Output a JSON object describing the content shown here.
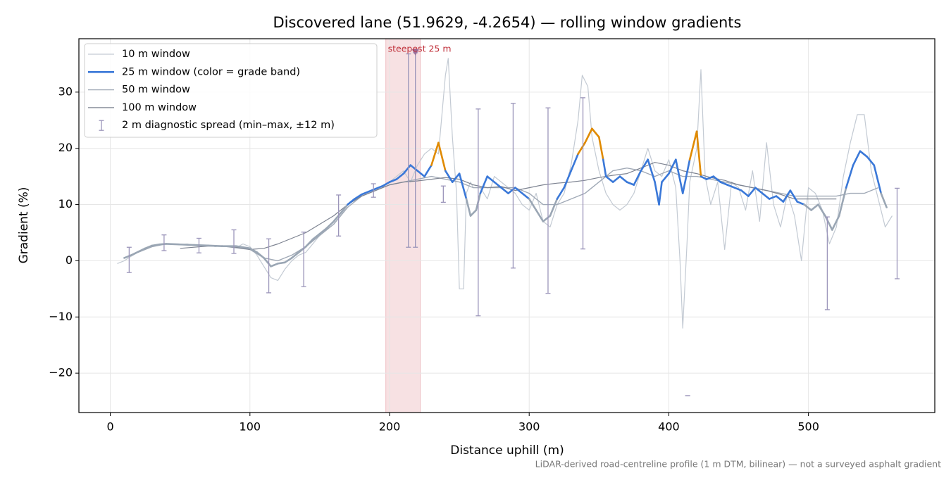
{
  "chart_data": {
    "type": "line",
    "title": "Discovered lane (51.9629, -4.2654) — rolling window gradients",
    "x_label": "Distance uphill (m)",
    "y_label": "Gradient (%)",
    "footnote": "LiDAR-derived road-centreline profile (1 m DTM, bilinear) — not a surveyed asphalt gradient",
    "xlim": [
      -22.5,
      590.5
    ],
    "ylim": [
      -27,
      39.5
    ],
    "xticks": [
      0,
      100,
      200,
      300,
      400,
      500
    ],
    "yticks": [
      {
        "value": -20,
        "label": "−20"
      },
      {
        "value": -10,
        "label": "−10"
      },
      0,
      10,
      20,
      30
    ],
    "grid": true,
    "legend": "upper left",
    "series": [
      {
        "name": "10 m window",
        "color": "#c3cad3",
        "width": 1.2,
        "x": [
          5,
          10,
          15,
          20,
          25,
          30,
          35,
          40,
          45,
          50,
          55,
          60,
          65,
          70,
          75,
          80,
          85,
          90,
          95,
          100,
          105,
          110,
          115,
          120,
          125,
          130,
          135,
          140,
          145,
          150,
          155,
          160,
          165,
          170,
          175,
          180,
          185,
          190,
          195,
          200,
          205,
          210,
          215,
          220,
          225,
          230,
          235,
          240,
          242,
          245,
          248,
          250,
          253,
          255,
          258,
          260,
          265,
          270,
          275,
          280,
          285,
          290,
          295,
          300,
          305,
          310,
          315,
          320,
          325,
          330,
          335,
          338,
          342,
          345,
          350,
          355,
          360,
          365,
          370,
          375,
          380,
          385,
          390,
          395,
          400,
          405,
          408,
          410,
          413,
          415,
          420,
          423,
          426,
          430,
          435,
          440,
          445,
          450,
          455,
          460,
          465,
          470,
          475,
          480,
          485,
          490,
          495,
          500,
          505,
          510,
          515,
          520,
          525,
          530,
          535,
          540,
          543,
          545,
          550,
          555,
          560
        ],
        "values": [
          -0.5,
          0,
          0.8,
          1.5,
          2,
          2.5,
          3,
          3,
          3,
          2.8,
          3,
          2.7,
          2.6,
          2.8,
          2.5,
          2.7,
          2.5,
          2.3,
          3,
          2.5,
          1,
          -1,
          -3,
          -3.5,
          -1.5,
          0,
          1,
          1.5,
          3,
          4.5,
          5.5,
          6.5,
          8,
          10,
          11,
          11.5,
          12,
          12.5,
          13,
          14,
          15,
          16,
          14,
          17,
          19,
          20,
          19,
          33,
          36,
          22,
          12,
          -5,
          -5,
          12,
          14,
          13,
          13,
          11,
          15,
          14,
          13,
          12,
          10,
          9,
          12,
          7,
          6,
          10,
          12,
          17,
          25,
          33,
          31,
          22,
          16,
          12,
          10,
          9,
          10,
          12,
          16,
          20,
          16,
          15,
          18,
          13,
          0,
          -12,
          3,
          14,
          20,
          34,
          15,
          10,
          14,
          2,
          14,
          13,
          9,
          16,
          7,
          21,
          10,
          6,
          12,
          8,
          0,
          13,
          12,
          9,
          3,
          6,
          15,
          21,
          26,
          26,
          20,
          16,
          11,
          6,
          8
        ]
      },
      {
        "name": "25 m window (color = grade band)",
        "color": "#3a78d8",
        "width": 2.6,
        "x": [
          10,
          15,
          20,
          25,
          30,
          35,
          40,
          50,
          60,
          70,
          80,
          90,
          100,
          105,
          110,
          115,
          120,
          125,
          130,
          135,
          140,
          145,
          150,
          155,
          160,
          165,
          170,
          175,
          180,
          185,
          190,
          195,
          200,
          205,
          210,
          215,
          220,
          225,
          230,
          235,
          240,
          245,
          250,
          255,
          258,
          262,
          265,
          270,
          275,
          280,
          285,
          290,
          295,
          300,
          305,
          310,
          315,
          320,
          325,
          330,
          335,
          340,
          345,
          350,
          353,
          355,
          360,
          365,
          370,
          375,
          380,
          385,
          390,
          393,
          395,
          400,
          405,
          410,
          415,
          420,
          423,
          427,
          432,
          437,
          442,
          447,
          452,
          457,
          462,
          467,
          472,
          477,
          482,
          487,
          492,
          497,
          502,
          507,
          512,
          517,
          522,
          527,
          532,
          537,
          542,
          547,
          552,
          556
        ],
        "values": [
          0.5,
          1,
          1.6,
          2.2,
          2.7,
          2.9,
          3,
          2.9,
          2.8,
          2.7,
          2.6,
          2.6,
          2.2,
          1.5,
          0.5,
          -1,
          -0.5,
          -0.3,
          0.5,
          1.5,
          2.5,
          3.8,
          4.8,
          5.8,
          7,
          8.5,
          10,
          11,
          11.8,
          12.3,
          12.8,
          13.3,
          14,
          14.5,
          15.5,
          17,
          16,
          15,
          17,
          21,
          16,
          14,
          15.5,
          11,
          8,
          9,
          12,
          15,
          14,
          13,
          12,
          13,
          12,
          11,
          9,
          7,
          8,
          11,
          13,
          16,
          19,
          21,
          23.5,
          22,
          18,
          15,
          14,
          15,
          14,
          13.5,
          16,
          18,
          14,
          10,
          14,
          15.5,
          18,
          12,
          18,
          23,
          15,
          14.5,
          15,
          14,
          13.5,
          13,
          12.5,
          11.5,
          13,
          12,
          11,
          11.5,
          10.5,
          12.5,
          10.5,
          10,
          9,
          10,
          8,
          5.5,
          8,
          13,
          17,
          19.5,
          18.5,
          17,
          12,
          9.5
        ]
      },
      {
        "name": "50 m window",
        "color": "#a0a9b6",
        "width": 1.4,
        "x": [
          20,
          30,
          40,
          60,
          80,
          100,
          110,
          120,
          130,
          140,
          150,
          160,
          170,
          180,
          190,
          200,
          210,
          220,
          230,
          240,
          250,
          260,
          270,
          280,
          290,
          300,
          310,
          320,
          330,
          340,
          350,
          360,
          370,
          380,
          390,
          400,
          410,
          420,
          430,
          440,
          450,
          460,
          470,
          480,
          490,
          500,
          510,
          520,
          530,
          540,
          550
        ],
        "values": [
          1.5,
          2.5,
          3,
          2.8,
          2.6,
          2,
          0.5,
          0,
          1,
          2.5,
          4.5,
          6.5,
          9.5,
          11.5,
          12.5,
          13.5,
          14,
          14.5,
          15,
          14.5,
          14,
          13,
          13,
          13,
          13,
          12,
          10,
          10,
          11,
          12,
          14,
          16,
          16.5,
          16,
          15,
          16,
          15,
          15,
          14.5,
          14,
          13.5,
          13,
          12.5,
          12,
          11.5,
          11.5,
          11.5,
          11.5,
          12,
          12,
          13
        ]
      },
      {
        "name": "100 m window",
        "color": "#7d8391",
        "width": 1.2,
        "x": [
          50,
          60,
          70,
          80,
          90,
          100,
          110,
          120,
          130,
          140,
          150,
          160,
          170,
          180,
          190,
          200,
          210,
          220,
          230,
          240,
          250,
          260,
          270,
          280,
          290,
          300,
          310,
          320,
          330,
          340,
          350,
          360,
          370,
          380,
          390,
          400,
          410,
          420,
          430,
          440,
          450,
          460,
          470,
          480,
          490,
          500,
          510,
          520
        ],
        "values": [
          2.2,
          2.4,
          2.6,
          2.6,
          2.4,
          2,
          2.2,
          3,
          4,
          5,
          6.5,
          8,
          10,
          11.5,
          12.5,
          13.5,
          14,
          14.2,
          14.5,
          14.8,
          14.5,
          13.5,
          13,
          13.2,
          12.5,
          13,
          13.5,
          13.8,
          14,
          14.3,
          14.8,
          15.2,
          15.5,
          16.5,
          17.5,
          17,
          16,
          15.5,
          14.8,
          14.3,
          13.5,
          13,
          12.5,
          11.8,
          11,
          11,
          11,
          11
        ]
      }
    ],
    "grade_bands": [
      {
        "min": -99,
        "color": "#9aa6b4"
      },
      {
        "min": 10,
        "color": "#3a78d8"
      },
      {
        "min": 20,
        "color": "#e08a00"
      }
    ],
    "error_bars": {
      "name": "2 m diagnostic spread (min–max, ±12 m)",
      "color": "#9b95ba",
      "x": [
        13.5,
        38.5,
        63.5,
        88.5,
        113.5,
        138.5,
        163.5,
        188.5,
        213.5,
        218.5,
        238.5,
        263.5,
        288.5,
        313.5,
        338.5,
        413.5,
        513.5,
        563.5
      ],
      "low": [
        -2.1,
        1.8,
        1.4,
        1.3,
        -5.7,
        -4.6,
        4.4,
        11.3,
        2.4,
        2.4,
        10.4,
        -9.8,
        -1.3,
        -5.8,
        2.1,
        -24,
        -8.7,
        -3.2
      ],
      "high": [
        2.4,
        4.6,
        4,
        5.5,
        3.9,
        5.1,
        11.7,
        13.7,
        36.8,
        37,
        13.3,
        27,
        28,
        27.2,
        29,
        -24,
        7.8,
        12.9
      ]
    },
    "steepest": {
      "label": "steepest 25 m",
      "xlim": [
        197.3,
        222
      ],
      "x": 218.5,
      "y": 37,
      "color": "#d9767f",
      "marker_color": "#9a6f9a"
    }
  }
}
